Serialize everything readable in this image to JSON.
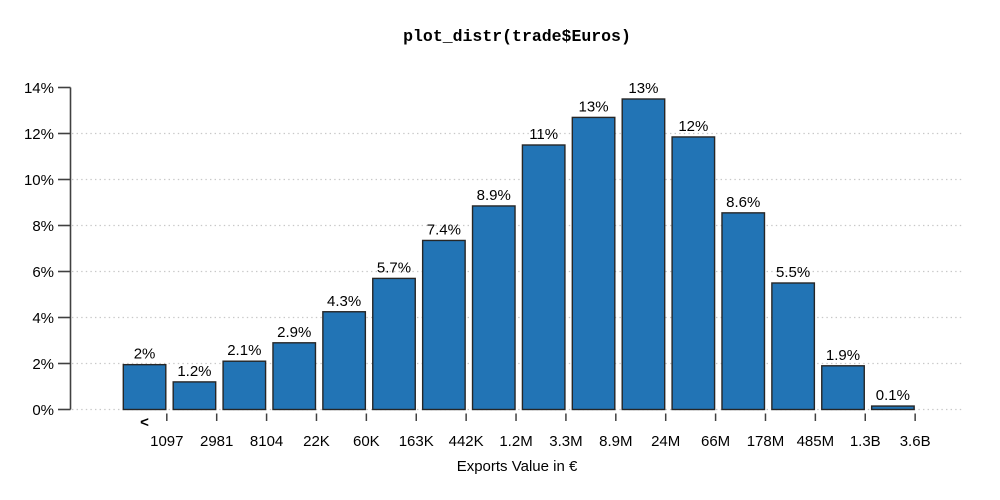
{
  "chart_data": {
    "type": "bar",
    "subtype": "histogram",
    "title": "plot_distr(trade$Euros)",
    "xlabel": "Exports Value in €",
    "ylabel": "",
    "ylim": [
      0,
      14
    ],
    "y_unit": "%",
    "y_ticks": [
      "0%",
      "2%",
      "4%",
      "6%",
      "8%",
      "10%",
      "12%",
      "14%"
    ],
    "y_tick_values": [
      0,
      2,
      4,
      6,
      8,
      10,
      12,
      14
    ],
    "grid_levels": [
      0,
      2,
      4,
      6,
      8,
      10,
      12
    ],
    "grid_style": "horizontal dotted",
    "legend": null,
    "first_bin_marker": "<",
    "x_edge_labels": [
      "1097",
      "2981",
      "8104",
      "22K",
      "60K",
      "163K",
      "442K",
      "1.2M",
      "3.3M",
      "8.9M",
      "24M",
      "66M",
      "178M",
      "485M",
      "1.3B",
      "3.6B"
    ],
    "bar_labels": [
      "2%",
      "1.2%",
      "2.1%",
      "2.9%",
      "4.3%",
      "5.7%",
      "7.4%",
      "8.9%",
      "11%",
      "13%",
      "13%",
      "12%",
      "8.6%",
      "5.5%",
      "1.9%",
      "0.1%"
    ],
    "values": [
      1.95,
      1.2,
      2.1,
      2.9,
      4.25,
      5.7,
      7.35,
      8.85,
      11.5,
      12.7,
      13.5,
      11.85,
      8.55,
      5.5,
      1.9,
      0.15
    ],
    "colors": {
      "bar_fill": "#2274b5",
      "bar_border": "#262626",
      "grid": "#c8c8c8",
      "axis": "#404040",
      "text": "#000000",
      "background": "#ffffff"
    }
  }
}
